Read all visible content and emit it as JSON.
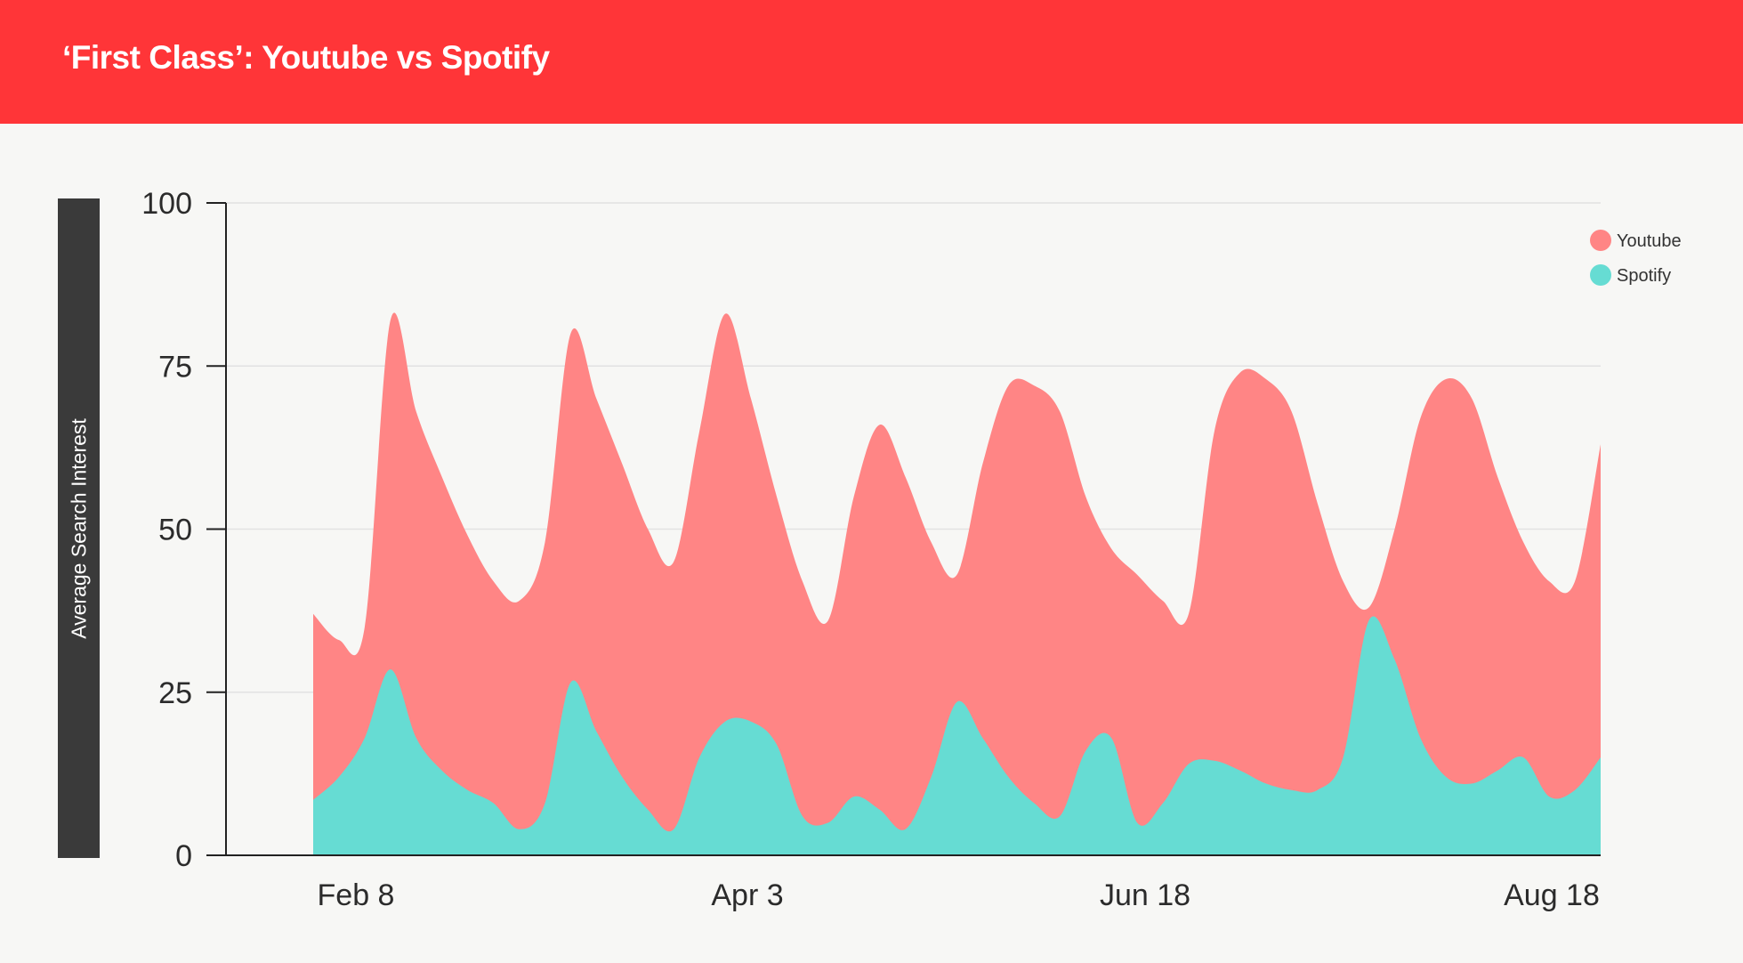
{
  "header": {
    "title": "‘First Class’: Youtube vs Spotify",
    "background": "#ff3538"
  },
  "chart_data": {
    "type": "area",
    "title": "‘First Class’: Youtube vs Spotify",
    "ylabel": "Average Search Interest",
    "xlabel": "",
    "ylim": [
      0,
      100
    ],
    "yticks": [
      0,
      25,
      50,
      75,
      100
    ],
    "xtick_labels": [
      "Feb 8",
      "Apr 3",
      "Jun 18",
      "Aug 18"
    ],
    "grid": true,
    "legend_position": "top-right",
    "series": [
      {
        "name": "Youtube",
        "color": "#ff8585",
        "values": [
          37,
          33,
          35,
          82,
          68,
          58,
          49,
          42,
          39,
          48,
          80,
          70,
          60,
          50,
          45,
          65,
          83,
          70,
          55,
          42,
          36,
          55,
          66,
          58,
          48,
          43,
          60,
          72,
          72,
          68,
          55,
          47,
          43,
          39,
          37,
          65,
          74,
          73,
          68,
          54,
          42,
          38,
          50,
          67,
          73,
          70,
          58,
          48,
          42,
          42,
          63
        ]
      },
      {
        "name": "Spotify",
        "color": "#66dcd3",
        "values": [
          8.5,
          12,
          18,
          28.5,
          18,
          13,
          10,
          8,
          4,
          8,
          26.5,
          19,
          12,
          7,
          4,
          15,
          20.5,
          20.5,
          17,
          6,
          5,
          9,
          7,
          4,
          12,
          23.5,
          18,
          12,
          8,
          6,
          16,
          18,
          5,
          8,
          14,
          14.5,
          13,
          11,
          10,
          10,
          15,
          36,
          30,
          18,
          12,
          11,
          13,
          15,
          9,
          10,
          15
        ]
      }
    ]
  }
}
